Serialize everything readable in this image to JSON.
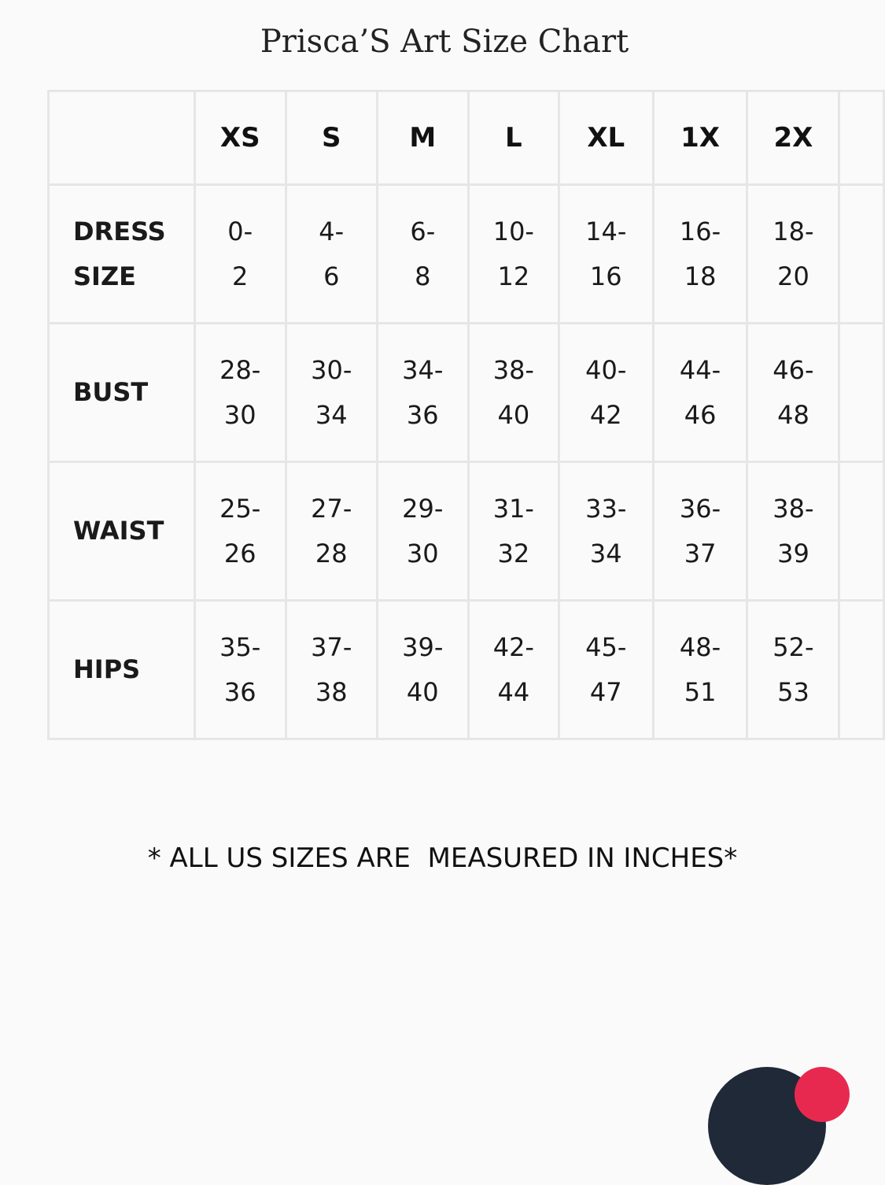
{
  "title": "Prisca’S Art Size Chart",
  "table": {
    "headers": [
      "",
      "XS",
      "S",
      "M",
      "L",
      "XL",
      "1X",
      "2X",
      ""
    ],
    "rows": [
      {
        "label": [
          "DRESS",
          "SIZE"
        ],
        "cells": [
          [
            "0-",
            "2"
          ],
          [
            "4-",
            "6"
          ],
          [
            "6-",
            "8"
          ],
          [
            "10-",
            "12"
          ],
          [
            "14-",
            "16"
          ],
          [
            "16-",
            "18"
          ],
          [
            "18-",
            "20"
          ]
        ]
      },
      {
        "label": [
          "BUST"
        ],
        "cells": [
          [
            "28-",
            "30"
          ],
          [
            "30-",
            "34"
          ],
          [
            "34-",
            "36"
          ],
          [
            "38-",
            "40"
          ],
          [
            "40-",
            "42"
          ],
          [
            "44-",
            "46"
          ],
          [
            "46-",
            "48"
          ]
        ]
      },
      {
        "label": [
          "WAIST"
        ],
        "cells": [
          [
            "25-",
            "26"
          ],
          [
            "27-",
            "28"
          ],
          [
            "29-",
            "30"
          ],
          [
            "31-",
            "32"
          ],
          [
            "33-",
            "34"
          ],
          [
            "36-",
            "37"
          ],
          [
            "38-",
            "39"
          ]
        ]
      },
      {
        "label": [
          "HIPS"
        ],
        "cells": [
          [
            "35-",
            "36"
          ],
          [
            "37-",
            "38"
          ],
          [
            "39-",
            "40"
          ],
          [
            "42-",
            "44"
          ],
          [
            "45-",
            "47"
          ],
          [
            "48-",
            "51"
          ],
          [
            "52-",
            "53"
          ]
        ]
      }
    ]
  },
  "note": "* ALL US SIZES ARE  MEASURED IN INCHES*",
  "colors": {
    "background": "#fafafa",
    "grid": "#e6e6e6",
    "chat_button": "#1f2937",
    "badge": "#e8294f"
  },
  "icons": {
    "chat": "chat-bubble-icon",
    "badge": "notification-badge"
  }
}
